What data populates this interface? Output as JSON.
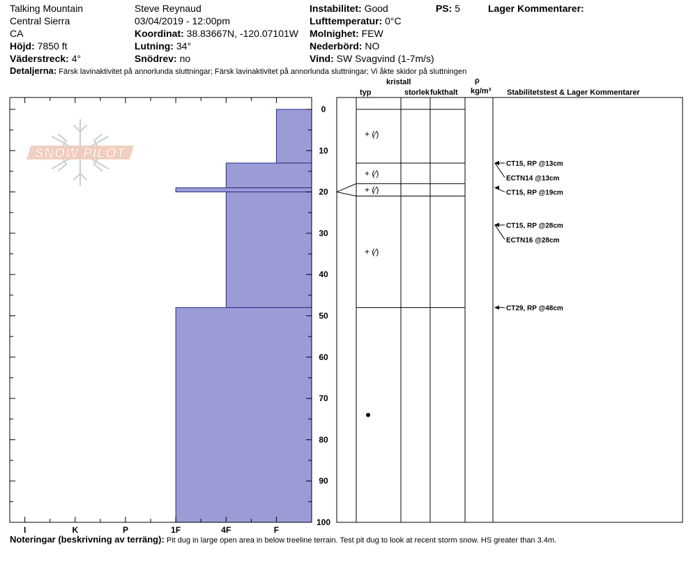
{
  "header": {
    "location": "Talking Mountain",
    "range": "Central Sierra",
    "state": "CA",
    "elevation_label": "Höjd:",
    "elevation": "7850 ft",
    "aspect_label": "Väderstreck:",
    "aspect": "4°",
    "observer": "Steve Reynaud",
    "datetime": "03/04/2019 - 12:00pm",
    "coord_label": "Koordinat:",
    "coord": "38.83667N, -120.07101W",
    "slope_label": "Lutning:",
    "slope": "34°",
    "wind_loading_label": "Snödrev:",
    "wind_loading": "no",
    "stability_label": "Instabilitet:",
    "stability": "Good",
    "air_temp_label": "Lufttemperatur:",
    "air_temp": "0°C",
    "sky_label": "Molnighet:",
    "sky": "FEW",
    "precip_label": "Nederbörd:",
    "precip": "NO",
    "wind_label": "Vind:",
    "wind": "SW  Svagvind (1-7m/s)",
    "ps_label": "PS:",
    "ps": "5",
    "layer_comments_label": "Lager Kommentarer:",
    "details_label": "Detaljerna:",
    "details": "Färsk lavinaktivitet på annorlunda sluttningar; Färsk lavinaktivitet på annorlunda sluttningar; Vi åkte skidor på sluttningen"
  },
  "logo": {
    "text": "SNOW PILOT"
  },
  "columns": {
    "type": "typ",
    "crystal": "kristall",
    "size": "storlek",
    "moisture": "fukthalt",
    "rho": "ρ",
    "density": "kg/m³",
    "stability": "Stabilitetstest & Lager Kommentarer"
  },
  "footer": {
    "notes_label": "Noteringar (beskrivning av terräng):",
    "notes": "Pit dug in large open area in below treeline terrain. Test pit dug to look at recent storm snow. HS greater than 3.4m."
  },
  "chart_data": {
    "type": "bar",
    "title": "",
    "xlabel": "",
    "ylabel": "",
    "x_ticks": [
      "I",
      "K",
      "P",
      "1F",
      "4F",
      "F"
    ],
    "x_tick_values": [
      6,
      5,
      4,
      3,
      2,
      1
    ],
    "xlim": [
      6.3,
      0.3
    ],
    "y_ticks": [
      0,
      10,
      20,
      30,
      40,
      50,
      60,
      70,
      80,
      90,
      100
    ],
    "ylim": [
      0,
      100
    ],
    "colors": {
      "hardness_fill": "#9b9bd6",
      "hardness_edge": "#2b2b8c"
    },
    "hardness_layers": [
      {
        "top": 0,
        "bottom": 13,
        "hardness": 1
      },
      {
        "top": 13,
        "bottom": 19,
        "hardness": 2
      },
      {
        "top": 19,
        "bottom": 20,
        "hardness": 3
      },
      {
        "top": 20,
        "bottom": 48,
        "hardness": 2
      },
      {
        "top": 48,
        "bottom": 100,
        "hardness": 3
      }
    ],
    "layer_boundaries": [
      0,
      13,
      18,
      21,
      48
    ],
    "grain_labels": [
      {
        "depth": 6,
        "text": "+ (⁄)"
      },
      {
        "depth": 15.5,
        "text": "+ (⁄)"
      },
      {
        "depth": 19.5,
        "text": "+ (⁄)"
      },
      {
        "depth": 34.5,
        "text": "+ (⁄)"
      }
    ],
    "grain_dot_depth": 74,
    "stability_tests": [
      {
        "depth": 13,
        "label_depth": 13,
        "text": "CT15, RP @13cm"
      },
      {
        "depth": 13,
        "label_depth": 16.5,
        "text": "ECTN14 @13cm"
      },
      {
        "depth": 19,
        "label_depth": 20,
        "text": "CT15, RP @19cm"
      },
      {
        "depth": 28,
        "label_depth": 28,
        "text": "CT15, RP @28cm"
      },
      {
        "depth": 28,
        "label_depth": 31.5,
        "text": "ECTN16 @28cm"
      },
      {
        "depth": 48,
        "label_depth": 48,
        "text": "CT29, RP @48cm"
      }
    ]
  }
}
